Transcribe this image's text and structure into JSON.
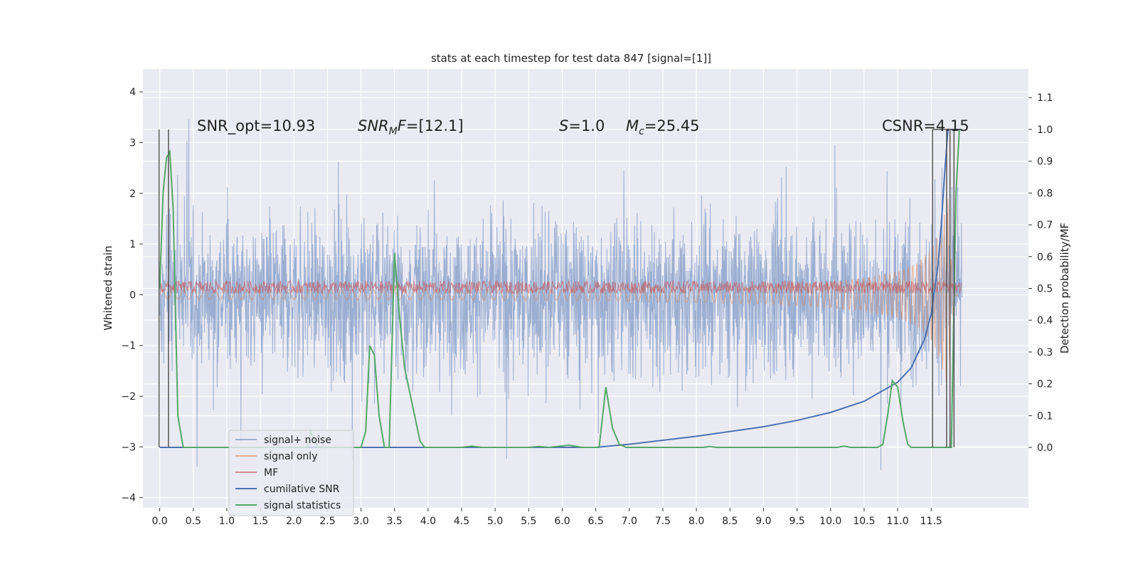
{
  "chart_data": {
    "type": "line",
    "title": "stats at each timestep for test data 847 [signal=[1]]",
    "ylabel_left": "Whitened strain",
    "ylabel_right": "Detection probability/MF",
    "xlim": [
      -0.25,
      12.95
    ],
    "ylim_left": [
      -4.2,
      4.45
    ],
    "ylim_right": [
      -0.19,
      1.19
    ],
    "grid": true,
    "legend_position": "lower-left",
    "x_ticks": [
      "0.0",
      "0.5",
      "1.0",
      "1.5",
      "2.0",
      "2.5",
      "3.0",
      "3.5",
      "4.0",
      "4.5",
      "5.0",
      "5.5",
      "6.0",
      "6.5",
      "7.0",
      "7.5",
      "8.0",
      "8.5",
      "9.0",
      "9.5",
      "10.0",
      "10.5",
      "11.0",
      "11.5"
    ],
    "y_ticks_left": [
      "4",
      "3",
      "2",
      "1",
      "0",
      "−1",
      "−2",
      "−3",
      "−4"
    ],
    "y_ticks_right": [
      "1.1",
      "1.0",
      "0.9",
      "0.8",
      "0.7",
      "0.6",
      "0.5",
      "0.4",
      "0.3",
      "0.2",
      "0.1",
      "0.0"
    ],
    "annotations": [
      {
        "id": "snr_opt",
        "text": "SNR_opt=10.93"
      },
      {
        "id": "snr_mf",
        "text": "[12.1]"
      },
      {
        "id": "s",
        "text": "=1.0"
      },
      {
        "id": "mc",
        "text": "=25.45"
      },
      {
        "id": "csnr",
        "text": "CSNR=4.15"
      }
    ],
    "series": [
      {
        "name": "signal+ noise",
        "color": "#4c72b0",
        "alpha": 0.5,
        "description": "whitened strain, noise dominated, amplitude roughly ±1.5 with spikes to ±3.5",
        "t_range": [
          0.0,
          11.96
        ]
      },
      {
        "name": "signal only",
        "color": "#dd8452",
        "description": "chirp signal growing towards merger",
        "points": [
          [
            0.0,
            0.05
          ],
          [
            6.0,
            0.06
          ],
          [
            9.0,
            0.1
          ],
          [
            10.0,
            0.14
          ],
          [
            10.5,
            0.18
          ],
          [
            11.0,
            0.25
          ],
          [
            11.3,
            0.35
          ],
          [
            11.5,
            0.5
          ],
          [
            11.6,
            0.65
          ],
          [
            11.7,
            0.9
          ],
          [
            11.75,
            1.05
          ],
          [
            11.8,
            0.4
          ],
          [
            11.85,
            0.1
          ]
        ]
      },
      {
        "name": "MF",
        "color": "#c44e52",
        "description": "matched filter output, thin band near 0.1 on left axis",
        "points": [
          [
            0.0,
            0.1
          ],
          [
            11.96,
            0.1
          ]
        ]
      },
      {
        "name": "cumilative SNR",
        "color": "#4c72b0",
        "axis": "right",
        "points": [
          [
            0.0,
            0.0
          ],
          [
            6.5,
            0.0
          ],
          [
            7.0,
            0.01
          ],
          [
            8.0,
            0.035
          ],
          [
            9.0,
            0.065
          ],
          [
            9.5,
            0.085
          ],
          [
            10.0,
            0.11
          ],
          [
            10.5,
            0.145
          ],
          [
            11.0,
            0.205
          ],
          [
            11.2,
            0.25
          ],
          [
            11.4,
            0.34
          ],
          [
            11.5,
            0.42
          ],
          [
            11.6,
            0.57
          ],
          [
            11.65,
            0.7
          ],
          [
            11.7,
            0.86
          ],
          [
            11.75,
            1.0
          ],
          [
            11.96,
            1.0
          ]
        ]
      },
      {
        "name": "signal statistics",
        "color": "#55a868",
        "axis": "right",
        "points": [
          [
            0.0,
            0.5
          ],
          [
            0.05,
            0.8
          ],
          [
            0.1,
            0.91
          ],
          [
            0.15,
            0.93
          ],
          [
            0.2,
            0.75
          ],
          [
            0.27,
            0.1
          ],
          [
            0.35,
            0.0
          ],
          [
            2.2,
            0.0
          ],
          [
            2.25,
            0.05
          ],
          [
            2.35,
            0.0
          ],
          [
            3.0,
            0.0
          ],
          [
            3.07,
            0.05
          ],
          [
            3.13,
            0.32
          ],
          [
            3.2,
            0.29
          ],
          [
            3.27,
            0.1
          ],
          [
            3.35,
            0.0
          ],
          [
            3.42,
            0.0
          ],
          [
            3.5,
            0.61
          ],
          [
            3.58,
            0.4
          ],
          [
            3.65,
            0.25
          ],
          [
            3.73,
            0.17
          ],
          [
            3.8,
            0.1
          ],
          [
            3.88,
            0.02
          ],
          [
            3.95,
            0.0
          ],
          [
            4.5,
            0.0
          ],
          [
            4.65,
            0.004
          ],
          [
            4.8,
            0.0
          ],
          [
            5.5,
            0.0
          ],
          [
            5.65,
            0.003
          ],
          [
            5.8,
            0.0
          ],
          [
            6.1,
            0.007
          ],
          [
            6.3,
            0.0
          ],
          [
            6.55,
            0.0
          ],
          [
            6.65,
            0.19
          ],
          [
            6.75,
            0.06
          ],
          [
            6.85,
            0.01
          ],
          [
            6.95,
            0.0
          ],
          [
            8.1,
            0.0
          ],
          [
            8.2,
            0.003
          ],
          [
            8.3,
            0.0
          ],
          [
            10.1,
            0.0
          ],
          [
            10.2,
            0.004
          ],
          [
            10.3,
            0.0
          ],
          [
            10.7,
            0.0
          ],
          [
            10.78,
            0.01
          ],
          [
            10.85,
            0.1
          ],
          [
            10.92,
            0.21
          ],
          [
            11.0,
            0.19
          ],
          [
            11.08,
            0.08
          ],
          [
            11.15,
            0.01
          ],
          [
            11.2,
            0.0
          ],
          [
            11.8,
            0.0
          ],
          [
            11.87,
            0.8
          ],
          [
            11.92,
            1.0
          ],
          [
            11.96,
            1.0
          ]
        ]
      }
    ],
    "vertical_lines": [
      -0.01,
      0.13,
      11.52,
      11.73,
      11.78,
      11.84
    ]
  }
}
